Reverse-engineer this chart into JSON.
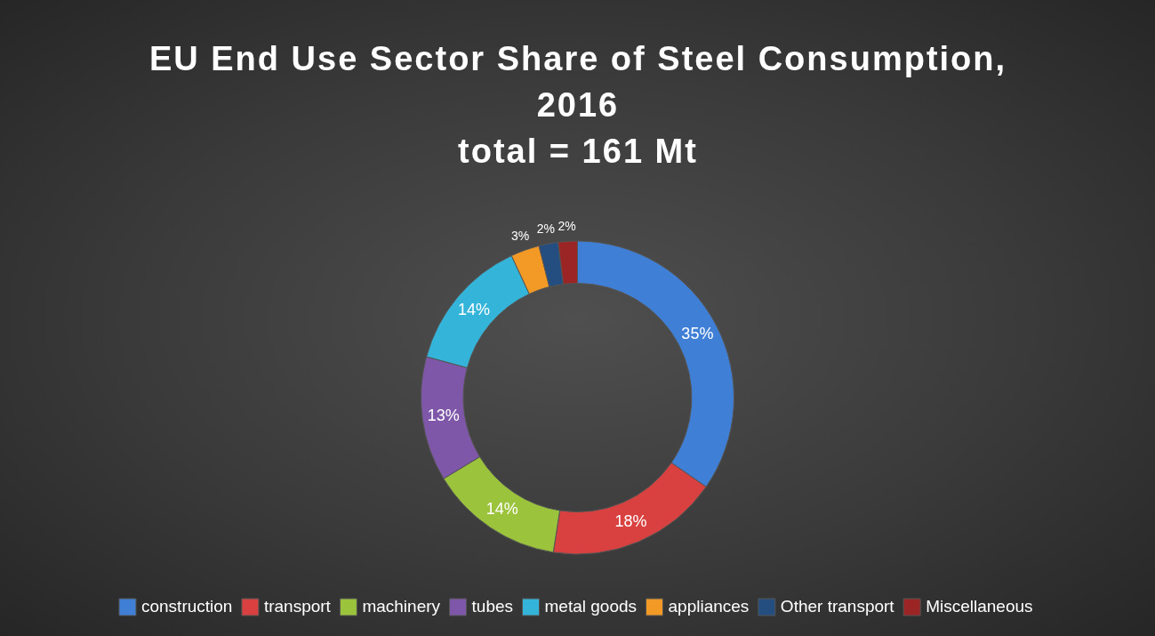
{
  "chart_data": {
    "type": "donut",
    "title": "EU End Use Sector Share of Steel Consumption, 2016",
    "subtitle": "total = 161 Mt",
    "categories": [
      "construction",
      "transport",
      "machinery",
      "tubes",
      "metal goods",
      "appliances",
      "Other transport",
      "Miscellaneous"
    ],
    "values": [
      35,
      18,
      14,
      13,
      14,
      3,
      2,
      2
    ],
    "value_labels": [
      "35%",
      "18%",
      "14%",
      "13%",
      "14%",
      "3%",
      "2%",
      "2%"
    ],
    "colors": [
      "#3f7fd6",
      "#d94040",
      "#9bc43c",
      "#7e57a8",
      "#34b4d8",
      "#f39a26",
      "#254e80",
      "#9b2525"
    ],
    "legend": "bottom"
  }
}
